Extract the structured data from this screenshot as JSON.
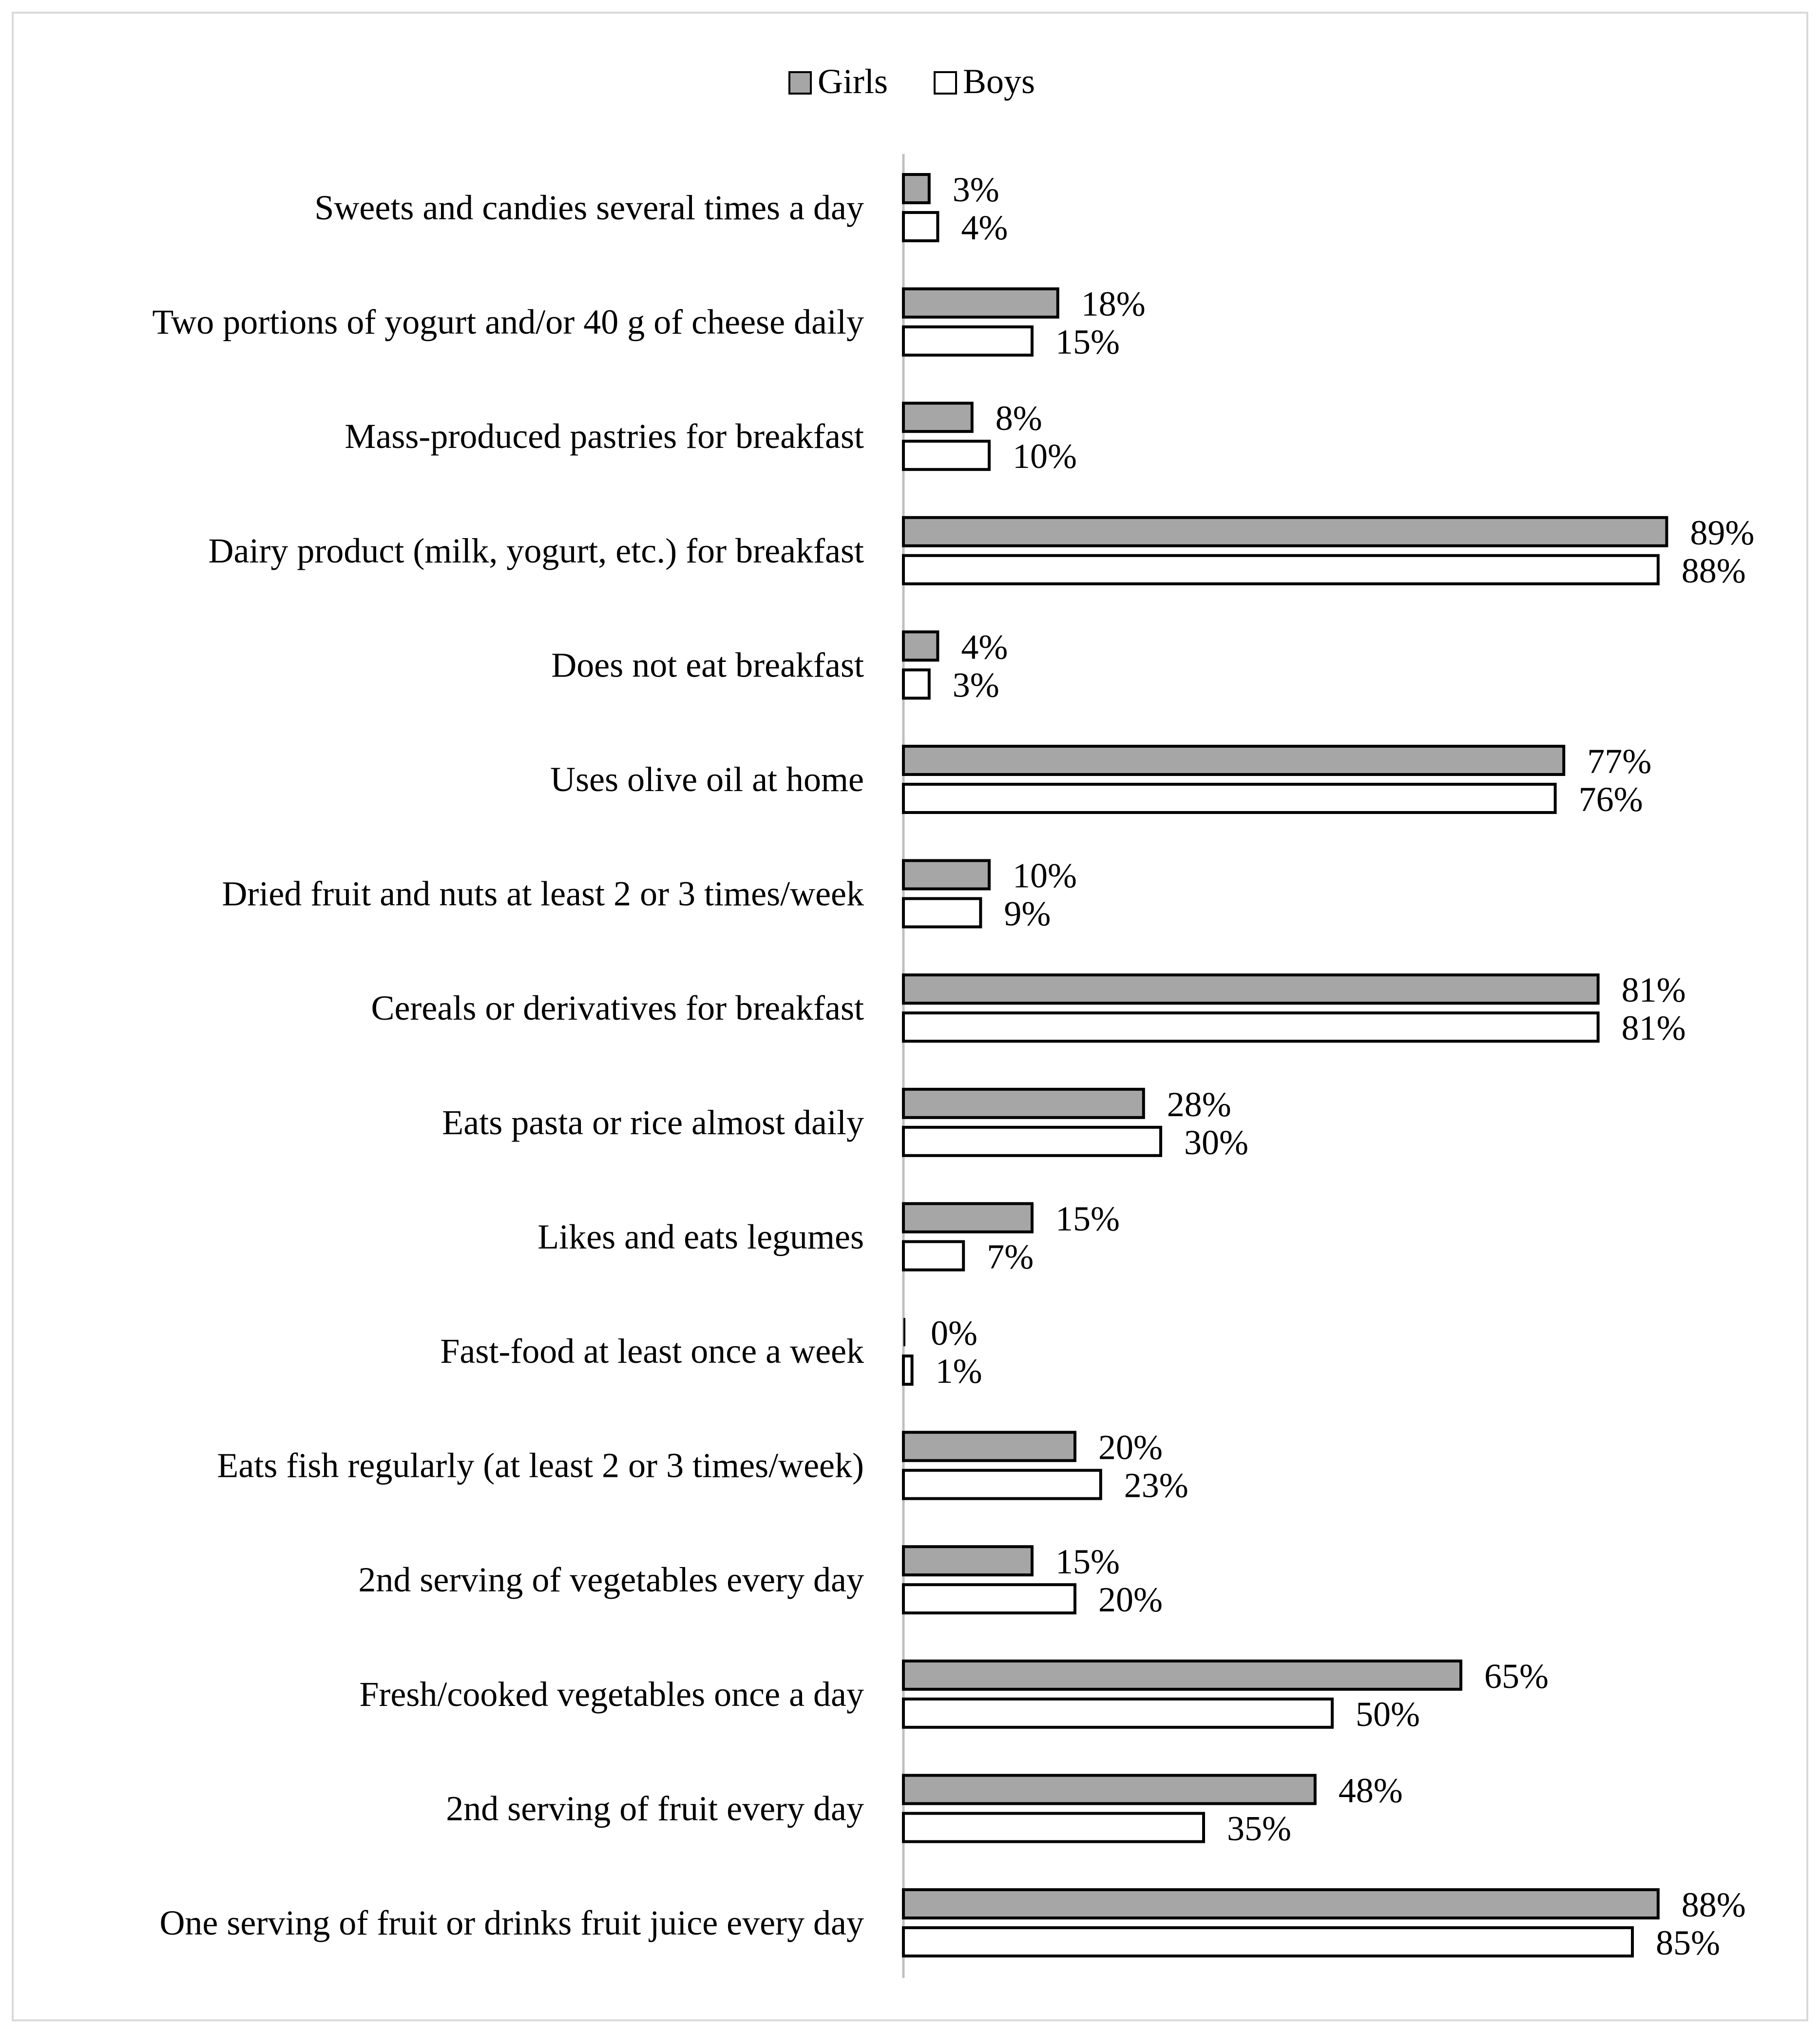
{
  "chart_data": {
    "type": "bar",
    "orientation": "horizontal",
    "title": "",
    "xlabel": "",
    "ylabel": "",
    "xlim": [
      0,
      100
    ],
    "grid": false,
    "legend": {
      "placement": "top-center",
      "entries": [
        "Girls",
        "Boys"
      ]
    },
    "categories": [
      "Sweets and candies several times a day",
      "Two portions of yogurt and/or 40 g of cheese daily",
      "Mass-produced pastries for breakfast",
      "Dairy product (milk, yogurt, etc.) for breakfast",
      "Does not eat breakfast",
      "Uses olive oil at home",
      "Dried fruit and nuts at least 2 or 3 times/week",
      "Cereals or derivatives  for breakfast",
      "Eats pasta or rice almost daily",
      "Likes and eats legumes",
      "Fast-food  at least once a week",
      "Eats fish regularly (at least 2 or 3 times/week)",
      "2nd serving of vegetables every day",
      "Fresh/cooked vegetables once a day",
      "2nd serving of fruit every day",
      "One serving of fruit or drinks fruit juice every day"
    ],
    "series": [
      {
        "name": "Girls",
        "color": "#a6a6a6",
        "values": [
          3,
          18,
          8,
          89,
          4,
          77,
          10,
          81,
          28,
          15,
          0,
          20,
          15,
          65,
          48,
          88
        ],
        "labels": [
          "3%",
          "18%",
          "8%",
          "89%",
          "4%",
          "77%",
          "10%",
          "81%",
          "28%",
          "15%",
          "0%",
          "20%",
          "15%",
          "65%",
          "48%",
          "88%"
        ]
      },
      {
        "name": "Boys",
        "color": "#ffffff",
        "values": [
          4,
          15,
          10,
          88,
          3,
          76,
          9,
          81,
          30,
          7,
          1,
          23,
          20,
          50,
          35,
          85
        ],
        "labels": [
          "4%",
          "15%",
          "10%",
          "88%",
          "3%",
          "76%",
          "9%",
          "81%",
          "30%",
          "7%",
          "1%",
          "23%",
          "20%",
          "50%",
          "35%",
          "85%"
        ]
      }
    ]
  }
}
